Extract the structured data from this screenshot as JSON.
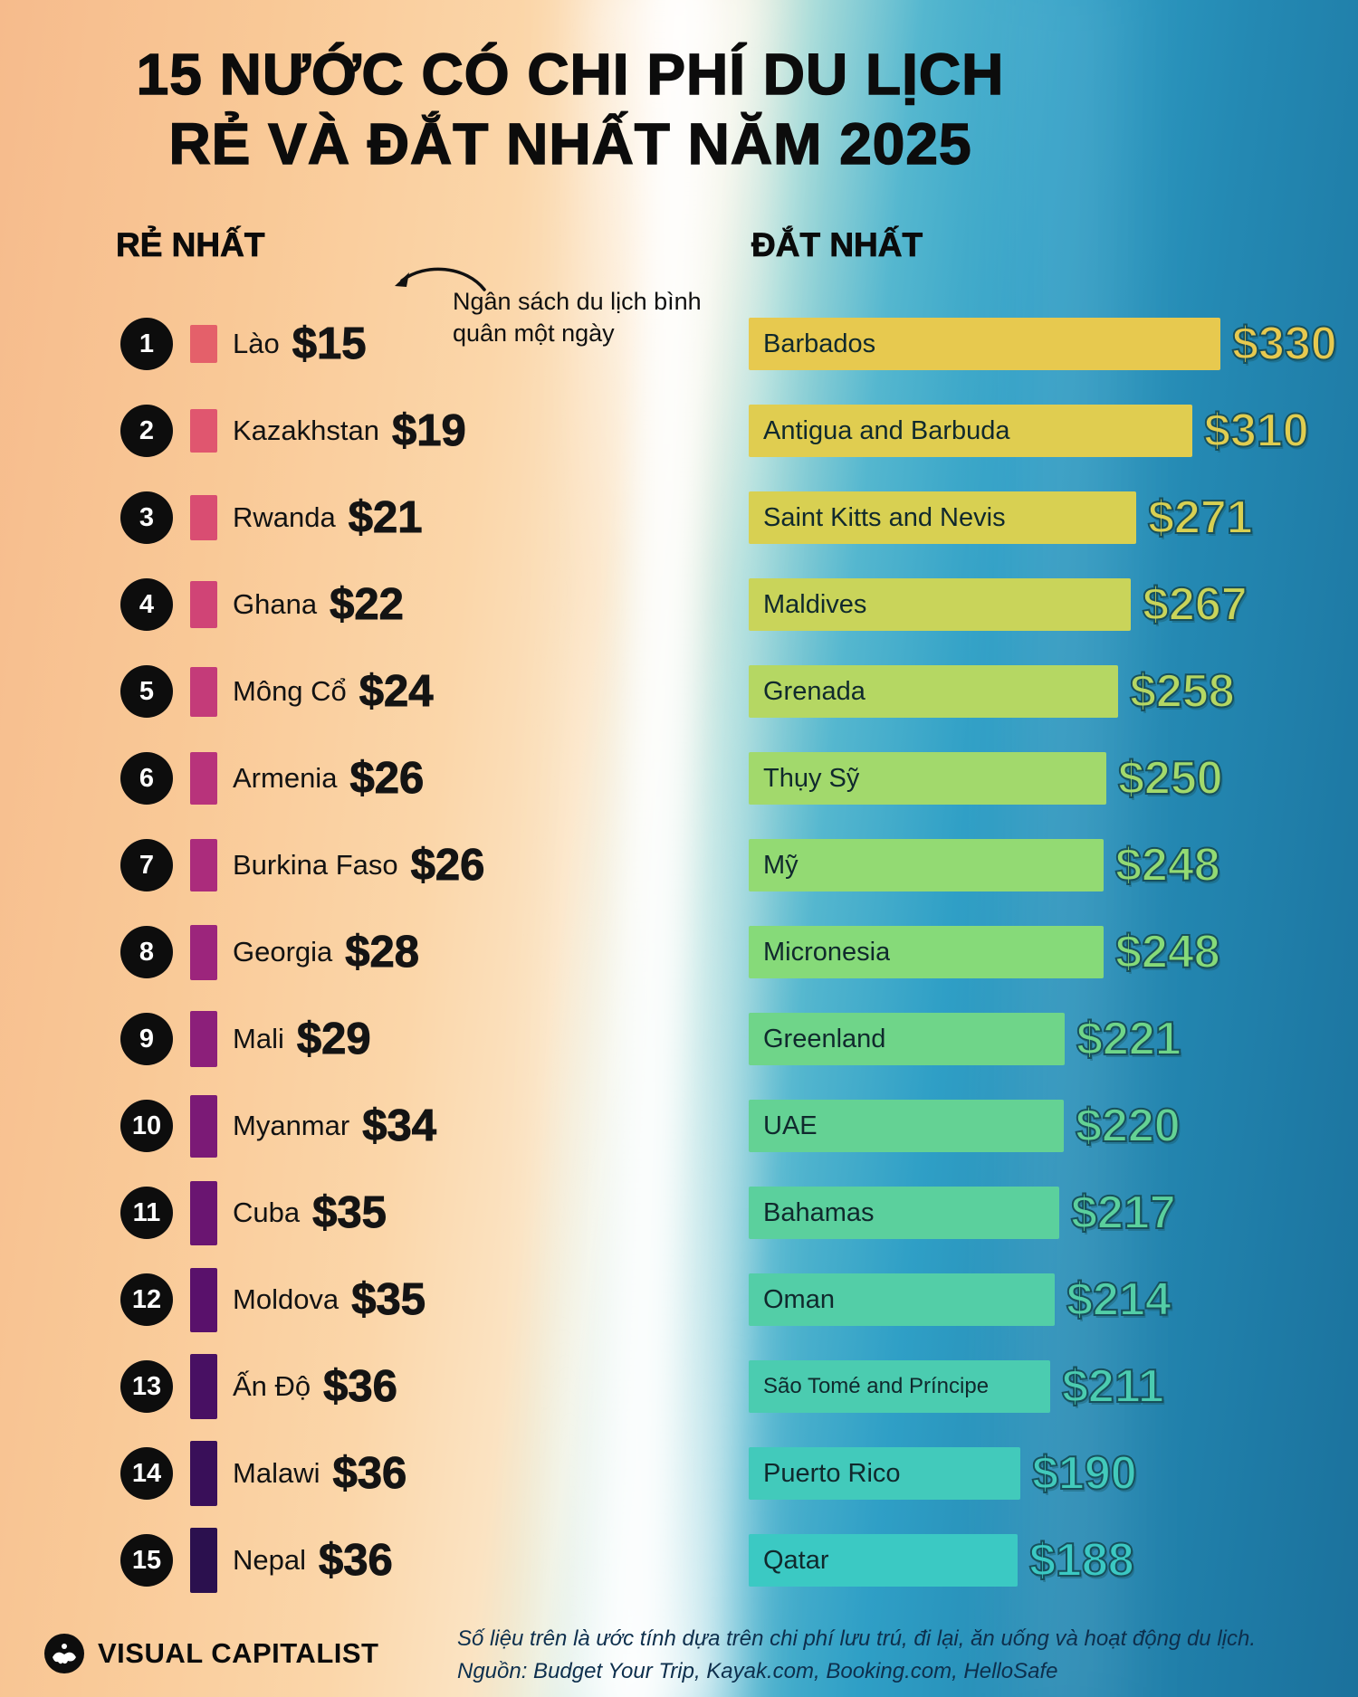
{
  "title": {
    "line1": "15 NƯỚC CÓ CHI PHÍ DU LỊCH",
    "line2": "RẺ VÀ ĐẮT NHẤT NĂM 2025"
  },
  "columns": {
    "cheapest_heading": "RẺ NHẤT",
    "expensive_heading": "ĐẮT NHẤT"
  },
  "annotation": {
    "text": "Ngân sách du lịch bình quân một ngày"
  },
  "chart_data": {
    "type": "bar",
    "title": "15 NƯỚC CÓ CHI PHÍ DU LỊCH RẺ VÀ ĐẮT NHẤT NĂM 2025",
    "unit": "USD per day",
    "value_prefix": "$",
    "series": [
      {
        "name": "RẺ NHẤT",
        "orientation": "vertical-mini-bars",
        "items": [
          {
            "rank": 1,
            "label": "Lào",
            "value": 15,
            "color": "#e4606a"
          },
          {
            "rank": 2,
            "label": "Kazakhstan",
            "value": 19,
            "color": "#e0566f"
          },
          {
            "rank": 3,
            "label": "Rwanda",
            "value": 21,
            "color": "#d94d72"
          },
          {
            "rank": 4,
            "label": "Ghana",
            "value": 22,
            "color": "#d04476"
          },
          {
            "rank": 5,
            "label": "Mông Cổ",
            "value": 24,
            "color": "#c43b79"
          },
          {
            "rank": 6,
            "label": "Armenia",
            "value": 26,
            "color": "#b8337b"
          },
          {
            "rank": 7,
            "label": "Burkina Faso",
            "value": 26,
            "color": "#ab2c7c"
          },
          {
            "rank": 8,
            "label": "Georgia",
            "value": 28,
            "color": "#9c257c"
          },
          {
            "rank": 9,
            "label": "Mali",
            "value": 29,
            "color": "#8c1f7a"
          },
          {
            "rank": 10,
            "label": "Myanmar",
            "value": 34,
            "color": "#7b1a76"
          },
          {
            "rank": 11,
            "label": "Cuba",
            "value": 35,
            "color": "#6a1571"
          },
          {
            "rank": 12,
            "label": "Moldova",
            "value": 35,
            "color": "#59116b"
          },
          {
            "rank": 13,
            "label": "Ấn Độ",
            "value": 36,
            "color": "#481063"
          },
          {
            "rank": 14,
            "label": "Malawi",
            "value": 36,
            "color": "#390f59"
          },
          {
            "rank": 15,
            "label": "Nepal",
            "value": 36,
            "color": "#2b104e"
          }
        ]
      },
      {
        "name": "ĐẮT NHẤT",
        "orientation": "horizontal-bars",
        "items": [
          {
            "label": "Barbados",
            "value": 330,
            "color": "#e7c94f"
          },
          {
            "label": "Antigua and Barbuda",
            "value": 310,
            "color": "#e0cd50"
          },
          {
            "label": "Saint Kitts and Nevis",
            "value": 271,
            "color": "#d8d052"
          },
          {
            "label": "Maldives",
            "value": 267,
            "color": "#c9d45a"
          },
          {
            "label": "Grenada",
            "value": 258,
            "color": "#b5d763"
          },
          {
            "label": "Thụy Sỹ",
            "value": 250,
            "color": "#a2d96c"
          },
          {
            "label": "Mỹ",
            "value": 248,
            "color": "#93da73"
          },
          {
            "label": "Micronesia",
            "value": 248,
            "color": "#86da79"
          },
          {
            "label": "Greenland",
            "value": 221,
            "color": "#6fd589"
          },
          {
            "label": "UAE",
            "value": 220,
            "color": "#64d294"
          },
          {
            "label": "Bahamas",
            "value": 217,
            "color": "#5bd09d"
          },
          {
            "label": "Oman",
            "value": 214,
            "color": "#53cea7"
          },
          {
            "label": "São Tomé and Príncipe",
            "value": 211,
            "color": "#4bccb0"
          },
          {
            "label": "Puerto Rico",
            "value": 190,
            "color": "#42cabb"
          },
          {
            "label": "Qatar",
            "value": 188,
            "color": "#3bc9c3"
          }
        ]
      }
    ]
  },
  "footer": {
    "note": "Số liệu trên là ước tính dựa trên chi phí lưu trú, đi lại, ăn uống và hoạt động du lịch.",
    "source": "Nguồn: Budget Your Trip, Kayak.com, Booking.com, HelloSafe",
    "logo_text": "VISUAL CAPITALIST"
  }
}
